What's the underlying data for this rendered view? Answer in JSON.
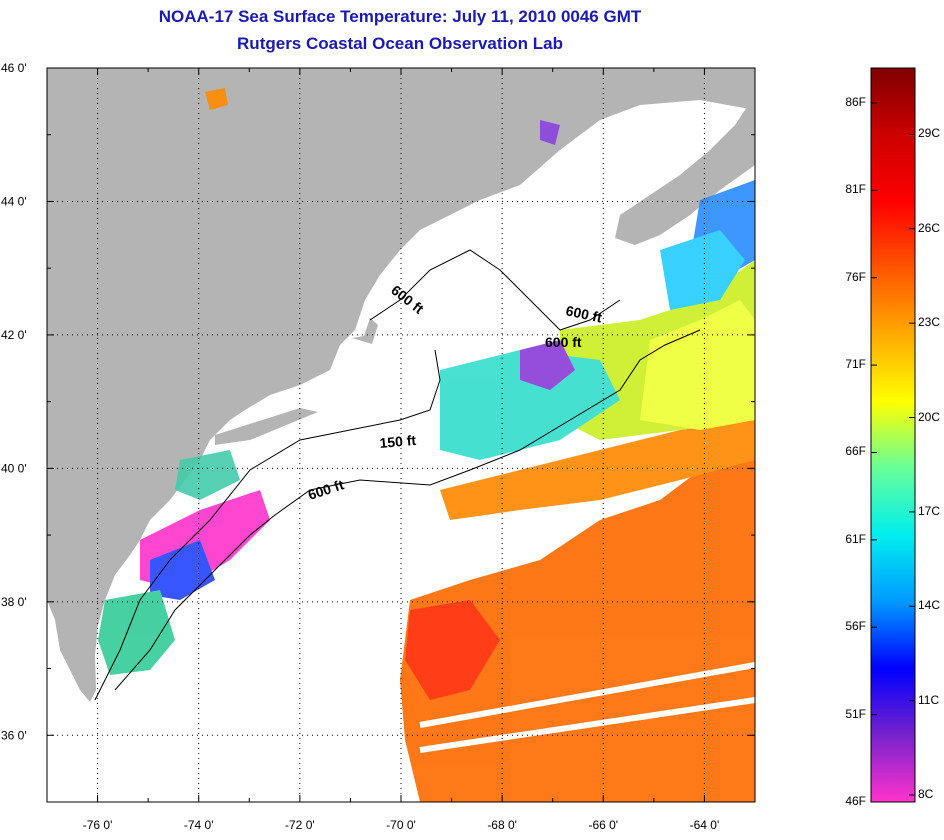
{
  "title": "NOAA-17 Sea Surface Temperature:  July 11, 2010 0046 GMT",
  "subtitle": "Rutgers Coastal Ocean Observation Lab",
  "colors": {
    "title": "#1a1ab4",
    "land": "#b4b4b4",
    "ocean": "#ffffff"
  },
  "axes": {
    "lon_labels": [
      "-76 0'",
      "-74 0'",
      "-72 0'",
      "-70 0'",
      "-68 0'",
      "-66 0'",
      "-64 0'"
    ],
    "lat_labels": [
      "46 0'",
      "44 0'",
      "42 0'",
      "40 0'",
      "38 0'",
      "36 0'"
    ],
    "lon_range": [
      -77.0,
      -63.0
    ],
    "lat_range": [
      35.0,
      46.0
    ],
    "grid": "dotted"
  },
  "contours": [
    "600 ft",
    "600 ft",
    "600 ft",
    "150 ft",
    "600 ft"
  ],
  "colorbar": {
    "fahrenheit": [
      "86F",
      "81F",
      "76F",
      "71F",
      "66F",
      "61F",
      "56F",
      "51F",
      "46F"
    ],
    "celsius": [
      "29C",
      "26C",
      "23C",
      "20C",
      "17C",
      "14C",
      "11C",
      "8C"
    ],
    "stops": [
      "#ff33cc",
      "#7722cc",
      "#0000ff",
      "#0099ff",
      "#00eeee",
      "#66ff99",
      "#ffff00",
      "#ffaa00",
      "#ff5500",
      "#ff0000",
      "#cc0000",
      "#800000"
    ]
  }
}
